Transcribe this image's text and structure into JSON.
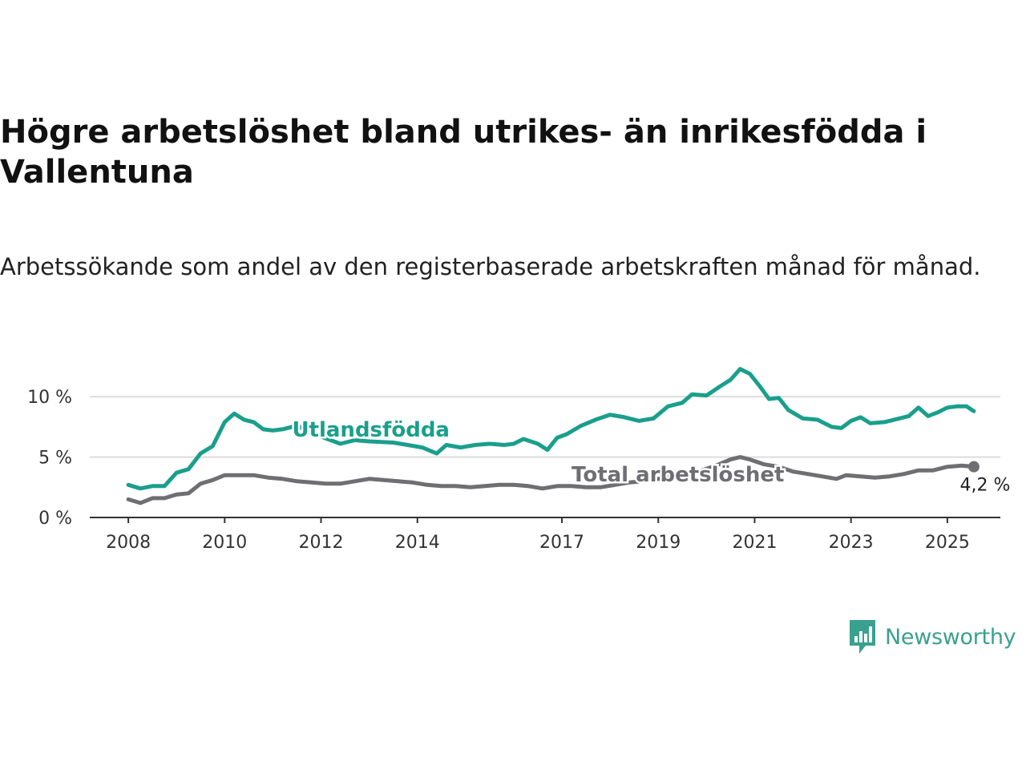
{
  "title": "Högre arbetslöshet bland utrikes- än inrikesfödda i Vallentuna",
  "subtitle": "Arbetssökande som andel av den registerbaserade arbetskraften månad för månad.",
  "brand": {
    "name": "Newsworthy",
    "icon": "newsworthy-logo-icon",
    "color": "#3aa08f"
  },
  "chart_data": {
    "type": "line",
    "title": "Högre arbetslöshet bland utrikes- än inrikesfödda i Vallentuna",
    "subtitle": "Arbetssökande som andel av den registerbaserade arbetskraften månad för månad.",
    "xlabel": "",
    "ylabel": "",
    "ylim": [
      0,
      13
    ],
    "xlim": [
      2007.2,
      2026.1
    ],
    "grid": "horizontal",
    "legend": "inline labels",
    "x_ticks": [
      {
        "value": 2008,
        "label": "2008"
      },
      {
        "value": 2010,
        "label": "2010"
      },
      {
        "value": 2012,
        "label": "2012"
      },
      {
        "value": 2014,
        "label": "2014"
      },
      {
        "value": 2017,
        "label": "2017"
      },
      {
        "value": 2019,
        "label": "2019"
      },
      {
        "value": 2021,
        "label": "2021"
      },
      {
        "value": 2023,
        "label": "2023"
      },
      {
        "value": 2025,
        "label": "2025"
      }
    ],
    "y_ticks": [
      {
        "value": 0,
        "label": "0 %"
      },
      {
        "value": 5,
        "label": "5 %"
      },
      {
        "value": 10,
        "label": "10 %"
      }
    ],
    "series": [
      {
        "name": "Utlandsfödda",
        "color": "#1a9f8c",
        "label_at": [
          2011.4,
          6.7
        ],
        "points": [
          [
            2008.0,
            2.7
          ],
          [
            2008.25,
            2.4
          ],
          [
            2008.5,
            2.6
          ],
          [
            2008.75,
            2.6
          ],
          [
            2009.0,
            3.7
          ],
          [
            2009.25,
            4.0
          ],
          [
            2009.5,
            5.3
          ],
          [
            2009.75,
            5.9
          ],
          [
            2010.0,
            7.9
          ],
          [
            2010.2,
            8.6
          ],
          [
            2010.4,
            8.1
          ],
          [
            2010.6,
            7.9
          ],
          [
            2010.8,
            7.3
          ],
          [
            2011.0,
            7.2
          ],
          [
            2011.2,
            7.3
          ],
          [
            2011.5,
            7.6
          ],
          [
            2011.8,
            7.0
          ],
          [
            2012.0,
            6.7
          ],
          [
            2012.2,
            6.4
          ],
          [
            2012.4,
            6.1
          ],
          [
            2012.7,
            6.4
          ],
          [
            2013.0,
            6.3
          ],
          [
            2013.5,
            6.2
          ],
          [
            2013.8,
            6.0
          ],
          [
            2014.1,
            5.8
          ],
          [
            2014.4,
            5.3
          ],
          [
            2014.6,
            6.0
          ],
          [
            2014.9,
            5.8
          ],
          [
            2015.2,
            6.0
          ],
          [
            2015.5,
            6.1
          ],
          [
            2015.8,
            6.0
          ],
          [
            2016.0,
            6.1
          ],
          [
            2016.2,
            6.5
          ],
          [
            2016.5,
            6.1
          ],
          [
            2016.7,
            5.6
          ],
          [
            2016.9,
            6.6
          ],
          [
            2017.1,
            6.9
          ],
          [
            2017.4,
            7.6
          ],
          [
            2017.7,
            8.1
          ],
          [
            2018.0,
            8.5
          ],
          [
            2018.3,
            8.3
          ],
          [
            2018.6,
            8.0
          ],
          [
            2018.9,
            8.2
          ],
          [
            2019.2,
            9.2
          ],
          [
            2019.5,
            9.5
          ],
          [
            2019.7,
            10.2
          ],
          [
            2020.0,
            10.1
          ],
          [
            2020.3,
            10.9
          ],
          [
            2020.5,
            11.4
          ],
          [
            2020.7,
            12.3
          ],
          [
            2020.9,
            11.9
          ],
          [
            2021.1,
            10.9
          ],
          [
            2021.3,
            9.8
          ],
          [
            2021.5,
            9.9
          ],
          [
            2021.7,
            8.9
          ],
          [
            2022.0,
            8.2
          ],
          [
            2022.3,
            8.1
          ],
          [
            2022.6,
            7.5
          ],
          [
            2022.8,
            7.4
          ],
          [
            2023.0,
            8.0
          ],
          [
            2023.2,
            8.3
          ],
          [
            2023.4,
            7.8
          ],
          [
            2023.7,
            7.9
          ],
          [
            2024.0,
            8.2
          ],
          [
            2024.2,
            8.4
          ],
          [
            2024.4,
            9.1
          ],
          [
            2024.6,
            8.4
          ],
          [
            2024.8,
            8.7
          ],
          [
            2025.0,
            9.1
          ],
          [
            2025.2,
            9.2
          ],
          [
            2025.4,
            9.2
          ],
          [
            2025.55,
            8.8
          ]
        ]
      },
      {
        "name": "Total arbetslöshet",
        "color": "#6e6e73",
        "label_at": [
          2017.2,
          3.0
        ],
        "end_value_label": "4,2 %",
        "points": [
          [
            2008.0,
            1.5
          ],
          [
            2008.25,
            1.2
          ],
          [
            2008.5,
            1.6
          ],
          [
            2008.75,
            1.6
          ],
          [
            2009.0,
            1.9
          ],
          [
            2009.25,
            2.0
          ],
          [
            2009.5,
            2.8
          ],
          [
            2009.75,
            3.1
          ],
          [
            2010.0,
            3.5
          ],
          [
            2010.3,
            3.5
          ],
          [
            2010.6,
            3.5
          ],
          [
            2010.9,
            3.3
          ],
          [
            2011.2,
            3.2
          ],
          [
            2011.5,
            3.0
          ],
          [
            2011.8,
            2.9
          ],
          [
            2012.1,
            2.8
          ],
          [
            2012.4,
            2.8
          ],
          [
            2012.7,
            3.0
          ],
          [
            2013.0,
            3.2
          ],
          [
            2013.3,
            3.1
          ],
          [
            2013.6,
            3.0
          ],
          [
            2013.9,
            2.9
          ],
          [
            2014.2,
            2.7
          ],
          [
            2014.5,
            2.6
          ],
          [
            2014.8,
            2.6
          ],
          [
            2015.1,
            2.5
          ],
          [
            2015.4,
            2.6
          ],
          [
            2015.7,
            2.7
          ],
          [
            2016.0,
            2.7
          ],
          [
            2016.3,
            2.6
          ],
          [
            2016.6,
            2.4
          ],
          [
            2016.9,
            2.6
          ],
          [
            2017.2,
            2.6
          ],
          [
            2017.5,
            2.5
          ],
          [
            2017.8,
            2.5
          ],
          [
            2018.1,
            2.7
          ],
          [
            2018.4,
            2.9
          ],
          [
            2018.7,
            3.0
          ],
          [
            2019.0,
            3.2
          ],
          [
            2019.3,
            3.4
          ],
          [
            2019.6,
            3.6
          ],
          [
            2019.9,
            3.9
          ],
          [
            2020.2,
            4.3
          ],
          [
            2020.5,
            4.8
          ],
          [
            2020.7,
            5.0
          ],
          [
            2020.9,
            4.8
          ],
          [
            2021.2,
            4.4
          ],
          [
            2021.5,
            4.2
          ],
          [
            2021.8,
            3.8
          ],
          [
            2022.1,
            3.6
          ],
          [
            2022.4,
            3.4
          ],
          [
            2022.7,
            3.2
          ],
          [
            2022.9,
            3.5
          ],
          [
            2023.2,
            3.4
          ],
          [
            2023.5,
            3.3
          ],
          [
            2023.8,
            3.4
          ],
          [
            2024.1,
            3.6
          ],
          [
            2024.4,
            3.9
          ],
          [
            2024.7,
            3.9
          ],
          [
            2025.0,
            4.2
          ],
          [
            2025.3,
            4.3
          ],
          [
            2025.55,
            4.2
          ]
        ]
      }
    ]
  }
}
